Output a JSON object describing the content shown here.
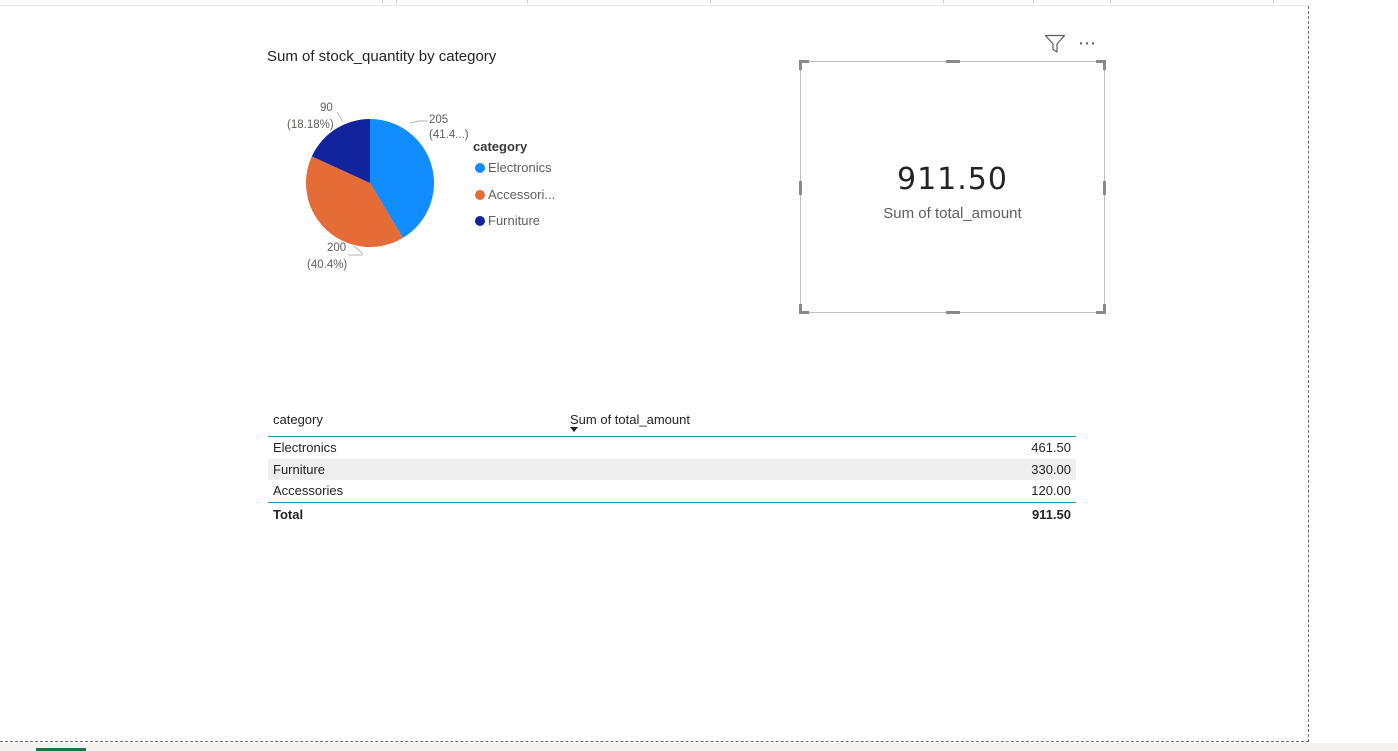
{
  "pie_visual": {
    "title": "Sum of stock_quantity by category",
    "legend_title": "category",
    "legend_items": [
      {
        "label": "Electronics",
        "color": "#118DFF"
      },
      {
        "label": "Accessori...",
        "color": "#E66C37"
      },
      {
        "label": "Furniture",
        "color": "#12239E"
      }
    ],
    "data_labels": [
      {
        "value": "205",
        "percent": "(41.4...)"
      },
      {
        "value": "200",
        "percent": "(40.4%)"
      },
      {
        "value": "90",
        "percent": "(18.18%)"
      }
    ]
  },
  "chart_data": {
    "type": "pie",
    "title": "Sum of stock_quantity by category",
    "legend_title": "category",
    "categories": [
      "Electronics",
      "Accessories",
      "Furniture"
    ],
    "values": [
      205,
      200,
      90
    ],
    "colors": [
      "#118DFF",
      "#E66C37",
      "#12239E"
    ],
    "legend_position": "right"
  },
  "card_visual": {
    "value": "911.50",
    "label": "Sum of total_amount",
    "header_icons": [
      "filter-icon",
      "more-options-icon"
    ]
  },
  "table_visual": {
    "columns": [
      "category",
      "Sum of total_amount"
    ],
    "rows": [
      {
        "category": "Electronics",
        "amount": "461.50"
      },
      {
        "category": "Furniture",
        "amount": "330.00"
      },
      {
        "category": "Accessories",
        "amount": "120.00"
      }
    ],
    "total": {
      "label": "Total",
      "amount": "911.50"
    }
  }
}
